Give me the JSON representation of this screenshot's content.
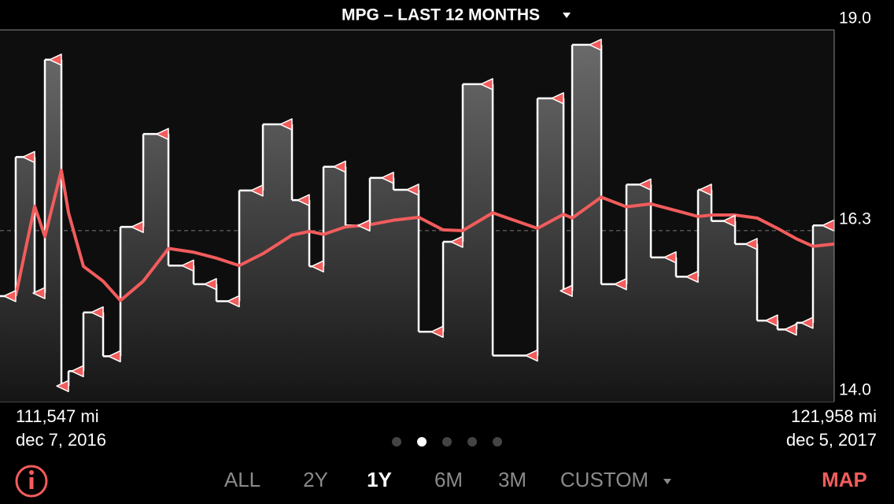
{
  "chart_data": {
    "type": "step",
    "title": "MPG – LAST 12 MONTHS",
    "x": [
      111743,
      111979,
      112107,
      112313,
      112402,
      112588,
      112834,
      113050,
      113335,
      113649,
      113963,
      114248,
      114533,
      114828,
      115191,
      115407,
      115584,
      115859,
      116163,
      116458,
      116772,
      117077,
      117322,
      117696,
      118255,
      118580,
      118688,
      119051,
      119365,
      119670,
      119984,
      120259,
      120426,
      120721,
      120996,
      121251,
      121487,
      121693,
      121958
    ],
    "series": [
      {
        "color": "#ffffff",
        "marker_color": "#f25c5c",
        "values": [
          15.42,
          17.29,
          15.46,
          18.6,
          14.21,
          14.41,
          15.2,
          14.61,
          16.35,
          17.6,
          15.83,
          15.58,
          15.35,
          16.84,
          17.73,
          16.71,
          15.82,
          17.16,
          16.37,
          17.01,
          16.85,
          14.94,
          16.15,
          18.27,
          14.62,
          18.08,
          15.49,
          18.8,
          15.58,
          16.92,
          15.94,
          15.68,
          16.85,
          16.43,
          16.12,
          15.09,
          14.97,
          15.06,
          16.37
        ]
      },
      {
        "color": "#f25c5c",
        "values": [
          15.42,
          16.63,
          16.22,
          17.11,
          16.54,
          15.82,
          15.62,
          15.36,
          15.62,
          16.06,
          16.01,
          15.93,
          15.83,
          15.99,
          16.24,
          16.29,
          16.25,
          16.35,
          16.38,
          16.44,
          16.48,
          16.31,
          16.3,
          16.54,
          16.33,
          16.52,
          16.47,
          16.75,
          16.62,
          16.66,
          16.57,
          16.49,
          16.51,
          16.51,
          16.47,
          16.33,
          16.19,
          16.09,
          16.12
        ]
      }
    ],
    "xlim": [
      111547,
      121958
    ],
    "xticks": [
      {
        "value": 111547,
        "label": "111,547 mi"
      },
      {
        "value": 121958,
        "label": "121,958 mi"
      }
    ],
    "start_date": "dec 7, 2016",
    "end_date": "dec 5, 2017",
    "ylim": [
      14,
      19
    ],
    "yticks": [
      {
        "value": 14,
        "label": "14.0"
      },
      16.3,
      {
        "value": 19,
        "label": "19.0"
      }
    ]
  },
  "tabs": [
    "ALL",
    "2Y",
    "1Y",
    "6M",
    "3M",
    "CUSTOM"
  ],
  "selected_tab": 2,
  "map_button": "MAP"
}
